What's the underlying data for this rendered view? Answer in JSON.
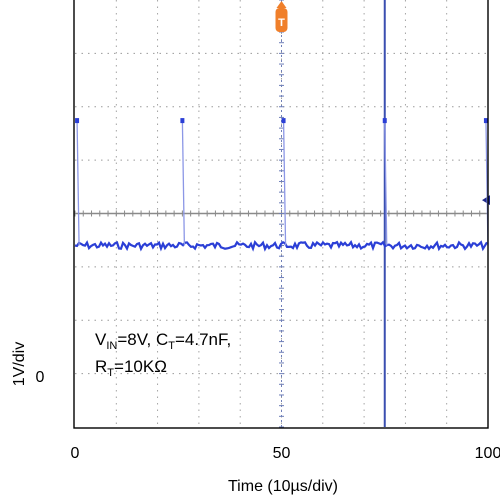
{
  "chart_data": {
    "type": "line",
    "ylabel": "1V/div",
    "xlabel": "Time (10µs/div)",
    "x_ticks": [
      "0",
      "50",
      "100"
    ],
    "x_tick_values": [
      0,
      50,
      100
    ],
    "y_ticks": [
      "0"
    ],
    "xlim": [
      0,
      100
    ],
    "ylim": [
      -1,
      7
    ],
    "grid": true,
    "annotation": {
      "line1_parts": [
        "V",
        "IN",
        "=8V, C",
        "T",
        "=4.7nF,"
      ],
      "line2_parts": [
        "R",
        "T",
        "=10KΩ"
      ]
    },
    "trigger_marker": {
      "label": "T",
      "x": 50,
      "color": "#f07f2a"
    },
    "cursor_x": 75,
    "trigger_level_y": 3.25,
    "series": [
      {
        "color": "#2b3fd6",
        "baseline": 2.4,
        "peak": 4.75,
        "pulse_x": [
          0.5,
          26,
          50.5,
          75,
          99.5
        ],
        "noise": 0.04
      }
    ],
    "colors": {
      "grid": "#9a9a9a",
      "trace": "#2b3fd6",
      "cursor": "#3a4fb0",
      "trigger": "#f07f2a",
      "axis": "#000000"
    }
  }
}
